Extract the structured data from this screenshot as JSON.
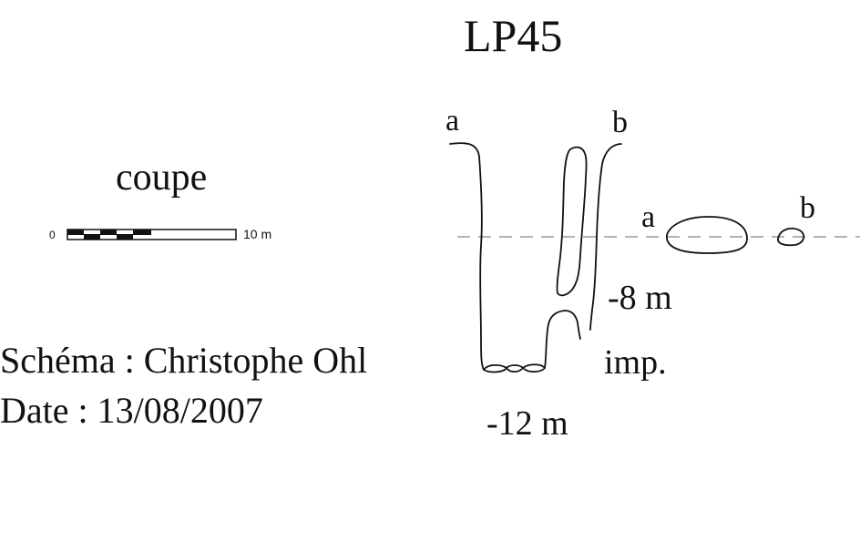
{
  "title": "LP45",
  "section_label": "coupe",
  "scale_bar": {
    "start_label": "0",
    "end_label": "10 m"
  },
  "credit": "Schéma : Christophe Ohl",
  "date": "Date : 13/08/2007",
  "section_ends": {
    "start": "a",
    "end": "b"
  },
  "plan_ends": {
    "start": "a",
    "end": "b"
  },
  "depth_mid": "-8 m",
  "obstruction": "imp.",
  "depth_max": "-12 m",
  "colors": {
    "ink": "#111111",
    "axis_dash": "#b3b3b3"
  }
}
